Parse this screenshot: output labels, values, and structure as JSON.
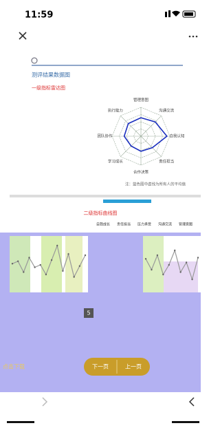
{
  "status_bar": {
    "time": "11:59"
  },
  "report": {
    "title": "测评结果数据图",
    "radar_title": "一级指标雷达图",
    "radar": {
      "axes": [
        "管理意图",
        "沟通交流",
        "自我认知",
        "责任担当",
        "合作决策",
        "学习成长",
        "团队协作",
        "执行能力"
      ],
      "values": [
        3.2,
        3.5,
        4.5,
        2.8,
        2.6,
        2.4,
        2.9,
        3.1
      ],
      "rlim": [
        0,
        5
      ]
    },
    "note": "注：蓝色图中虚线为所有人的平均值",
    "line_title": "二级指标曲线图",
    "columns": [
      "自我成长",
      "责任担当",
      "压力承受",
      "沟通交流",
      "管理意图"
    ],
    "line_left": {
      "values": [
        3.1,
        3.3,
        2.4,
        3.6,
        2.8,
        3.0,
        2.2,
        3.4,
        4.6,
        2.5,
        3.9,
        2.0,
        2.9,
        3.8
      ],
      "ylim": [
        1,
        5
      ]
    },
    "line_right": {
      "values": [
        3.5,
        2.6,
        3.8,
        2.2,
        3.0,
        4.2,
        2.4,
        3.2,
        1.8,
        3.6
      ],
      "ylim": [
        1,
        5
      ]
    }
  },
  "pager": {
    "page": "5",
    "download": "点击下载",
    "next": "下一页",
    "prev": "上一页"
  }
}
